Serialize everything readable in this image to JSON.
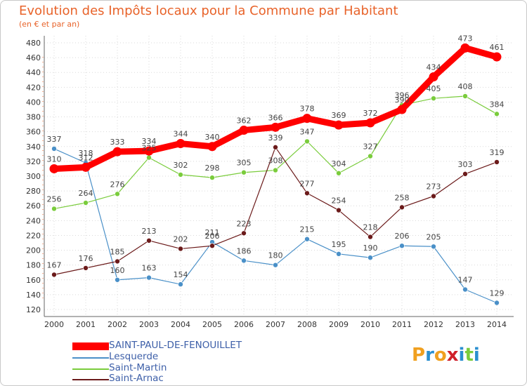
{
  "chart_data": {
    "type": "line",
    "title": "Evolution des Impôts locaux pour la Commune par Habitant",
    "subtitle": "(en € et par an)",
    "categories": [
      "2000",
      "2001",
      "2002",
      "2003",
      "2004",
      "2005",
      "2006",
      "2007",
      "2008",
      "2009",
      "2010",
      "2011",
      "2012",
      "2013",
      "2014"
    ],
    "ylim": [
      120,
      480
    ],
    "yticks": [
      120,
      140,
      160,
      180,
      200,
      220,
      240,
      260,
      280,
      300,
      320,
      340,
      360,
      380,
      400,
      420,
      440,
      460,
      480
    ],
    "grid": true,
    "legend_position": "bottom-left",
    "series": [
      {
        "name": "SAINT-PAUL-DE-FENOUILLET",
        "color": "#ff0000",
        "values": [
          310,
          312,
          333,
          334,
          344,
          340,
          362,
          366,
          378,
          369,
          372,
          390,
          434,
          473,
          461
        ],
        "labels": [
          "310",
          "312",
          "333",
          "334",
          "344",
          "340",
          "362",
          "366",
          "378",
          "369",
          "372",
          "390",
          "434",
          "473",
          "461"
        ]
      },
      {
        "name": "Lesquerde",
        "color": "#4a90c8",
        "values": [
          337,
          318,
          160,
          163,
          154,
          211,
          186,
          180,
          215,
          195,
          190,
          206,
          205,
          147,
          129
        ],
        "labels": [
          "337",
          "318",
          "160",
          "163",
          "154",
          "211",
          "186",
          "180",
          "215",
          "195",
          "190",
          "206",
          "205",
          "147",
          "129"
        ]
      },
      {
        "name": "Saint-Martin",
        "color": "#7acc3c",
        "values": [
          256,
          264,
          276,
          325,
          302,
          298,
          305,
          308,
          347,
          304,
          327,
          396,
          405,
          408,
          384
        ],
        "labels": [
          "256",
          "264",
          "276",
          "325",
          "302",
          "298",
          "305",
          "308",
          "347",
          "304",
          "327",
          "396",
          "405",
          "408",
          "384"
        ]
      },
      {
        "name": "Saint-Arnac",
        "color": "#6b1a1a",
        "values": [
          167,
          176,
          185,
          213,
          202,
          206,
          223,
          339,
          277,
          254,
          218,
          258,
          273,
          303,
          319
        ],
        "labels": [
          "167",
          "176",
          "185",
          "213",
          "202",
          "206",
          "223",
          "339",
          "277",
          "254",
          "218",
          "258",
          "273",
          "303",
          "319"
        ]
      }
    ]
  },
  "logo": {
    "letters": [
      "P",
      "r",
      "o",
      "x",
      "i",
      "t",
      "i"
    ],
    "colors": [
      "#f0a020",
      "#2a8fd0",
      "#f0a020",
      "#d0202a",
      "#2a8fd0",
      "#7acc3c",
      "#2a8fd0"
    ]
  }
}
